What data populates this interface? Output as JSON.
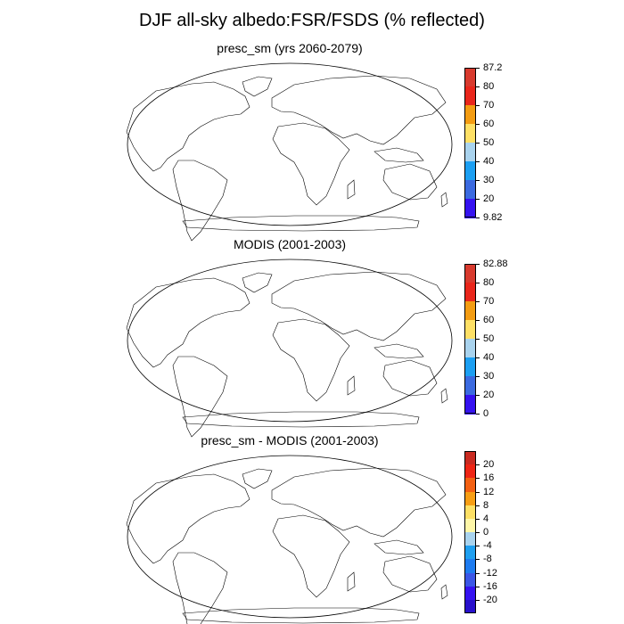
{
  "figure": {
    "title": "DJF all-sky albedo:FSR/FSDS (% reflected)"
  },
  "panels": [
    {
      "title": "presc_sm (yrs 2060-2079)",
      "colorbar": {
        "labels": [
          "87.2",
          "80",
          "70",
          "60",
          "50",
          "40",
          "30",
          "20",
          "9.82"
        ],
        "colors": [
          "#d83a2e",
          "#e9261b",
          "#f39c12",
          "#fee065",
          "#a9d3ee",
          "#1c9ff2",
          "#3b6ae0",
          "#3512f0"
        ]
      }
    },
    {
      "title": "MODIS (2001-2003)",
      "colorbar": {
        "labels": [
          "82.88",
          "80",
          "70",
          "60",
          "50",
          "40",
          "30",
          "20",
          "0"
        ],
        "colors": [
          "#d83a2e",
          "#e9261b",
          "#f39c12",
          "#fee065",
          "#a9d3ee",
          "#1c9ff2",
          "#3b6ae0",
          "#3512f0"
        ]
      }
    },
    {
      "title": "presc_sm - MODIS (2001-2003)",
      "colorbar": {
        "labels": [
          "20",
          "16",
          "12",
          "8",
          "4",
          "0",
          "-4",
          "-8",
          "-12",
          "-16",
          "-20"
        ],
        "colors": [
          "#c92a21",
          "#ee2515",
          "#f36012",
          "#f79e14",
          "#fde065",
          "#fff7a8",
          "#a9d3ee",
          "#1f9ff0",
          "#1d7bf0",
          "#3b56e6",
          "#3512f0",
          "#2810cc"
        ]
      }
    }
  ]
}
